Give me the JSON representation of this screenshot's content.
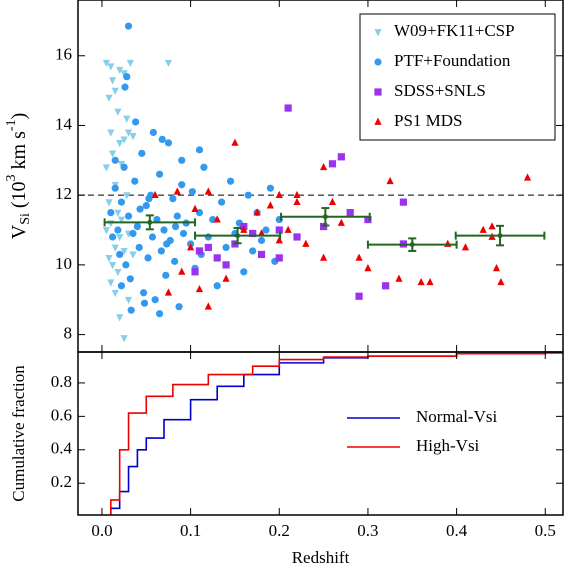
{
  "chart_data": [
    {
      "type": "scatter",
      "ylabel": [
        "V",
        "Si",
        " (10",
        "3",
        " km s",
        "-1",
        ")"
      ],
      "xlim": [
        -0.027,
        0.52
      ],
      "ylim": [
        7.5,
        17.6
      ],
      "xticks": [
        {
          "value": 0,
          "label": "0.0"
        },
        0.1,
        0.2,
        0.3,
        0.4,
        0.5
      ],
      "yticks": [
        8,
        10,
        12,
        14,
        16
      ],
      "show_xtick_labels": false,
      "hline": 12,
      "legend": "upper right",
      "series": [
        {
          "name": "W09+FK11+CSP",
          "color": "#87ceeb",
          "marker": "triangle-down",
          "x": [
            0.005,
            0.01,
            0.012,
            0.02,
            0.025,
            0.032,
            0.075,
            0.015,
            0.008,
            0.018,
            0.028,
            0.01,
            0.02,
            0.025,
            0.03,
            0.035,
            0.012,
            0.005,
            0.022,
            0.015,
            0.028,
            0.008,
            0.018,
            0.01,
            0.005,
            0.02,
            0.015,
            0.025,
            0.008,
            0.012,
            0.03,
            0.022,
            0.018,
            0.01,
            0.015,
            0.02,
            0.025,
            0.035,
            0.04,
            0.03
          ],
          "values": [
            15.8,
            15.7,
            15.3,
            15.6,
            15.5,
            15.8,
            15.8,
            15.0,
            14.8,
            14.4,
            14.2,
            13.8,
            13.5,
            13.6,
            13.8,
            13.7,
            13.2,
            12.8,
            12.9,
            12.3,
            12.0,
            11.8,
            11.5,
            11.2,
            11.0,
            10.8,
            10.5,
            10.4,
            10.2,
            10.0,
            10.9,
            11.3,
            9.8,
            9.5,
            9.2,
            8.5,
            7.9,
            10.3,
            11.1,
            9.0
          ]
        },
        {
          "name": "PTF+Foundation",
          "color": "#3399ee",
          "marker": "circle",
          "x": [
            0.01,
            0.012,
            0.015,
            0.018,
            0.02,
            0.022,
            0.025,
            0.027,
            0.03,
            0.032,
            0.035,
            0.037,
            0.04,
            0.042,
            0.045,
            0.047,
            0.05,
            0.052,
            0.055,
            0.057,
            0.06,
            0.062,
            0.065,
            0.067,
            0.07,
            0.072,
            0.075,
            0.077,
            0.08,
            0.082,
            0.085,
            0.087,
            0.09,
            0.092,
            0.095,
            0.1,
            0.102,
            0.105,
            0.11,
            0.112,
            0.115,
            0.12,
            0.125,
            0.13,
            0.135,
            0.14,
            0.145,
            0.15,
            0.155,
            0.16,
            0.165,
            0.17,
            0.175,
            0.18,
            0.185,
            0.19,
            0.195,
            0.2,
            0.03,
            0.028,
            0.026,
            0.033,
            0.048,
            0.058,
            0.068,
            0.038,
            0.015,
            0.022,
            0.065,
            0.09,
            0.11,
            0.043,
            0.053,
            0.073,
            0.083
          ],
          "values": [
            11.5,
            10.8,
            12.2,
            11.0,
            10.3,
            11.8,
            12.8,
            10.0,
            11.4,
            9.6,
            10.9,
            12.4,
            11.1,
            10.5,
            13.2,
            9.2,
            11.7,
            10.2,
            12.0,
            10.8,
            9.0,
            11.3,
            12.6,
            10.4,
            11.0,
            9.7,
            13.5,
            10.7,
            11.9,
            10.1,
            11.4,
            8.8,
            12.3,
            10.9,
            11.2,
            10.6,
            12.1,
            9.9,
            11.5,
            10.3,
            12.8,
            10.8,
            11.3,
            9.4,
            11.8,
            10.5,
            12.4,
            10.9,
            11.2,
            9.8,
            12.0,
            10.4,
            11.5,
            10.7,
            11.0,
            12.2,
            10.1,
            11.3,
            16.85,
            15.4,
            15.1,
            8.7,
            8.9,
            13.8,
            13.6,
            14.1,
            13.0,
            9.4,
            8.6,
            13.0,
            13.3,
            11.6,
            11.9,
            10.6,
            11.1
          ]
        },
        {
          "name": "SDSS+SNLS",
          "color": "#9933ee",
          "marker": "square",
          "x": [
            0.21,
            0.27,
            0.26,
            0.34,
            0.28,
            0.3,
            0.25,
            0.22,
            0.2,
            0.17,
            0.12,
            0.11,
            0.15,
            0.13,
            0.14,
            0.105,
            0.2,
            0.29,
            0.32,
            0.34,
            0.16,
            0.18
          ],
          "values": [
            14.5,
            13.1,
            12.9,
            11.8,
            11.5,
            11.3,
            11.1,
            10.8,
            11.0,
            10.9,
            10.5,
            10.4,
            10.6,
            10.2,
            10.0,
            9.8,
            10.2,
            9.1,
            9.4,
            10.6,
            11.1,
            10.3
          ]
        },
        {
          "name": "PS1 MDS",
          "color": "#ee0000",
          "marker": "triangle-up",
          "x": [
            0.06,
            0.085,
            0.12,
            0.15,
            0.2,
            0.22,
            0.25,
            0.27,
            0.325,
            0.48,
            0.19,
            0.175,
            0.16,
            0.13,
            0.105,
            0.1,
            0.09,
            0.11,
            0.075,
            0.12,
            0.14,
            0.2,
            0.21,
            0.23,
            0.25,
            0.29,
            0.3,
            0.335,
            0.36,
            0.37,
            0.39,
            0.41,
            0.43,
            0.44,
            0.44,
            0.445,
            0.45,
            0.22,
            0.18,
            0.26
          ],
          "values": [
            12.0,
            12.1,
            12.1,
            13.5,
            12.0,
            11.8,
            12.8,
            11.2,
            12.4,
            12.5,
            11.7,
            11.5,
            11.0,
            11.3,
            11.6,
            10.5,
            9.8,
            9.3,
            9.2,
            8.8,
            9.6,
            10.7,
            11.0,
            10.6,
            10.2,
            10.2,
            9.9,
            9.6,
            9.5,
            9.5,
            10.6,
            10.5,
            11.0,
            11.1,
            10.8,
            9.9,
            9.5,
            12.0,
            10.9,
            11.8
          ]
        }
      ],
      "binned": {
        "color": "#226622",
        "x": [
          0.054,
          0.153,
          0.252,
          0.35,
          0.449
        ],
        "values": [
          11.22,
          10.84,
          11.38,
          10.58,
          10.84
        ],
        "xerr": [
          0.051,
          0.048,
          0.05,
          0.05,
          0.05
        ],
        "yerr": [
          0.2,
          0.22,
          0.25,
          0.18,
          0.28
        ]
      }
    },
    {
      "type": "line",
      "xlabel": "Redshift",
      "ylabel": "Cumulative fraction",
      "xlim": [
        -0.027,
        0.52
      ],
      "ylim": [
        0.01,
        0.985
      ],
      "xticks": [
        {
          "value": 0,
          "label": "0.0"
        },
        0.1,
        0.2,
        0.3,
        0.4,
        0.5
      ],
      "yticks": [
        0.2,
        0.4,
        0.6,
        0.8
      ],
      "show_xtick_labels": true,
      "legend": "center right",
      "series": [
        {
          "name": "Normal-Vsi",
          "color": "#0000cc",
          "x": [
            0.005,
            0.01,
            0.02,
            0.03,
            0.04,
            0.05,
            0.07,
            0.1,
            0.13,
            0.16,
            0.2,
            0.25,
            0.3,
            0.4,
            0.5,
            0.52
          ],
          "values": [
            0,
            0.05,
            0.15,
            0.3,
            0.4,
            0.47,
            0.58,
            0.7,
            0.78,
            0.85,
            0.92,
            0.95,
            0.96,
            0.975,
            0.98,
            0.98
          ]
        },
        {
          "name": "High-Vsi",
          "color": "#ee0000",
          "x": [
            0.003,
            0.01,
            0.02,
            0.03,
            0.05,
            0.08,
            0.12,
            0.17,
            0.2,
            0.25,
            0.3,
            0.4,
            0.5,
            0.52
          ],
          "values": [
            0,
            0.1,
            0.4,
            0.62,
            0.72,
            0.79,
            0.85,
            0.9,
            0.94,
            0.955,
            0.96,
            0.975,
            0.985,
            0.985
          ]
        }
      ]
    }
  ]
}
